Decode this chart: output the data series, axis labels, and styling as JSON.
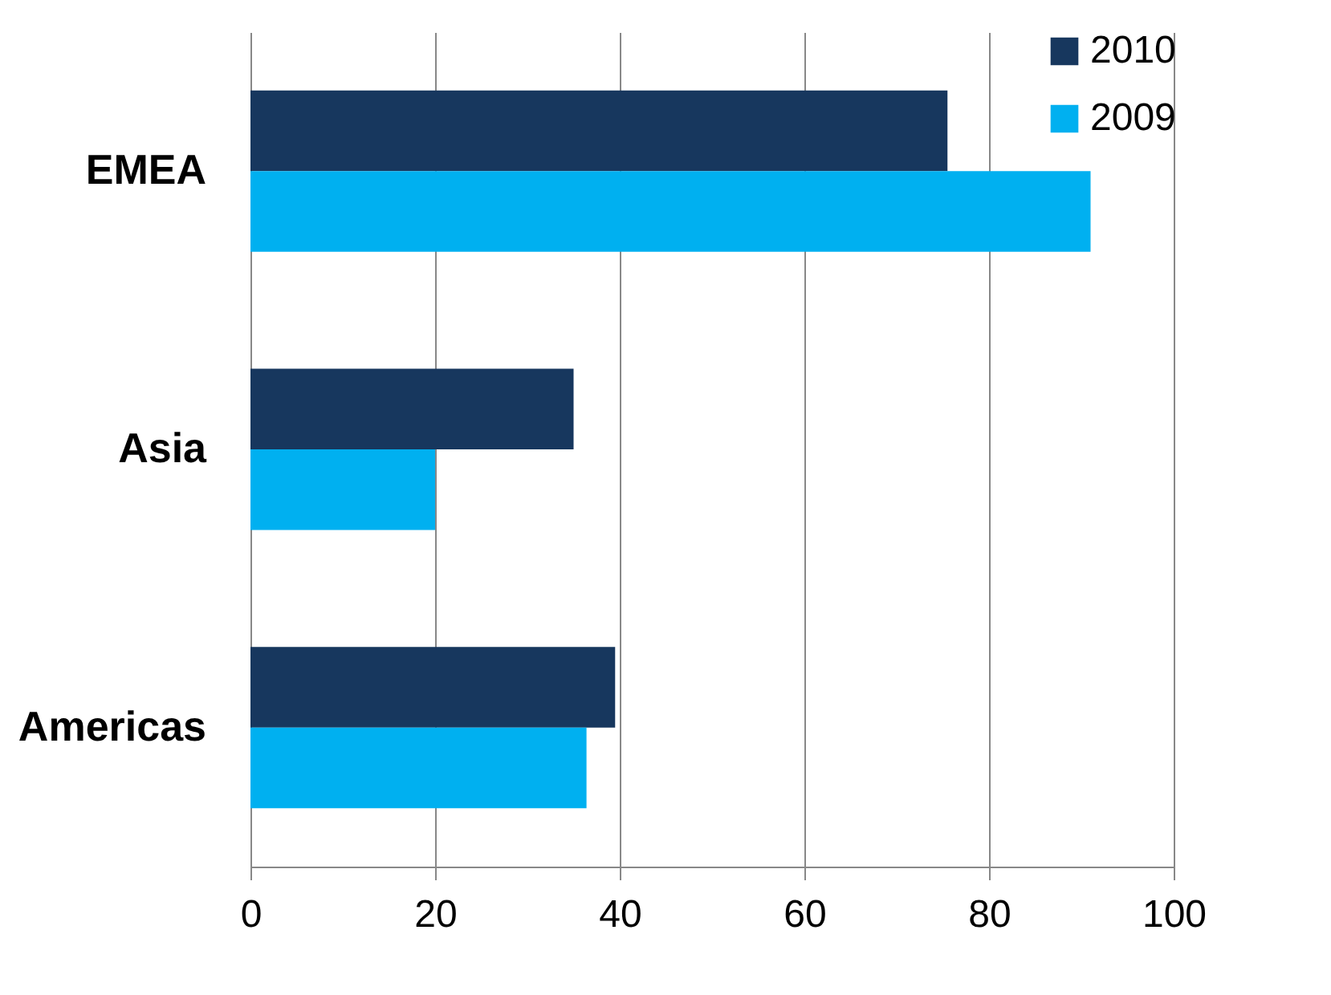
{
  "chart_data": {
    "type": "bar",
    "orientation": "horizontal",
    "categories": [
      "EMEA",
      "Asia",
      "Americas"
    ],
    "series": [
      {
        "name": "2010",
        "color": "#17375e",
        "values": [
          75.5,
          35,
          39.5
        ]
      },
      {
        "name": "2009",
        "color": "#00b0f0",
        "values": [
          91,
          20,
          36.4
        ]
      }
    ],
    "xlim": [
      0,
      100
    ],
    "xticks": [
      0,
      20,
      40,
      60,
      80,
      100
    ],
    "grid": "x",
    "legend": "right"
  }
}
